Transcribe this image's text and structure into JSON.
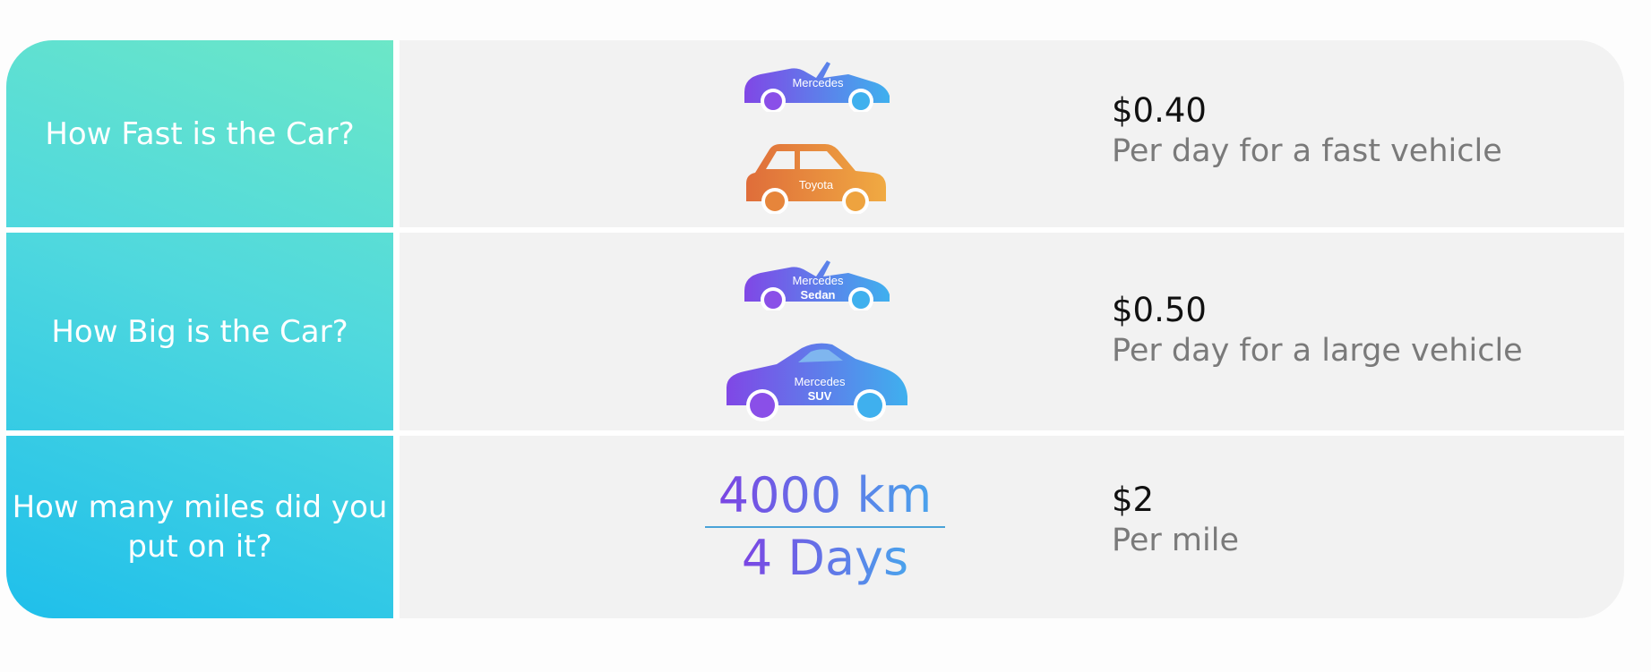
{
  "rows": [
    {
      "question": "How Fast is the Car?",
      "price": "$0.40",
      "description": "Per day for a fast vehicle",
      "cars": [
        {
          "brand": "Mercedes",
          "type": "",
          "icon": "convertible-car-icon"
        },
        {
          "brand": "Toyota",
          "type": "",
          "icon": "hatchback-car-icon"
        }
      ]
    },
    {
      "question": "How Big is the Car?",
      "price": "$0.50",
      "description": "Per day for a large vehicle",
      "cars": [
        {
          "brand": "Mercedes",
          "type": "Sedan",
          "icon": "convertible-car-icon"
        },
        {
          "brand": "Mercedes",
          "type": "SUV",
          "icon": "coupe-car-icon"
        }
      ]
    },
    {
      "question": "How many miles did you put on it?",
      "price": "$2",
      "description": "Per mile",
      "distance": "4000 km",
      "duration": "4 Days"
    }
  ],
  "colors": {
    "gradient_start": "#7b45e3",
    "gradient_end": "#4aa3ec",
    "orange_start": "#e0723a",
    "orange_end": "#f0a840",
    "teal": "#4fd8de"
  }
}
